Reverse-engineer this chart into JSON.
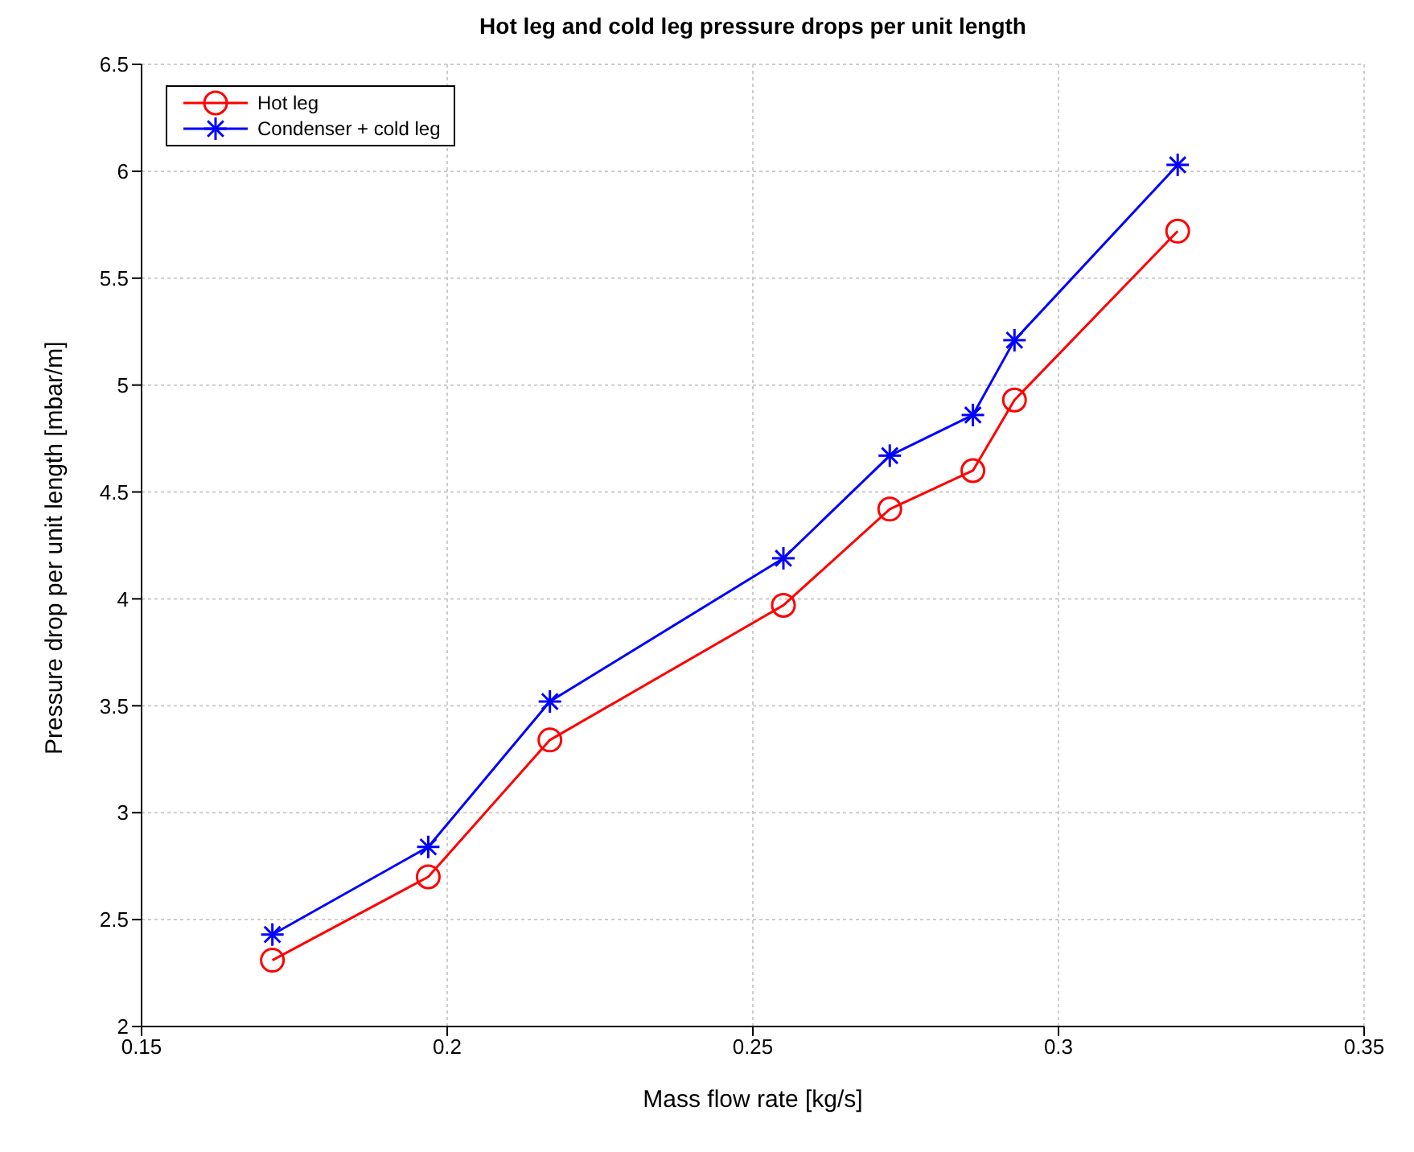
{
  "chart_data": {
    "type": "line",
    "title": "Hot leg and cold leg pressure drops per unit length",
    "xlabel": "Mass flow rate [kg/s]",
    "ylabel": "Pressure drop per unit length [mbar/m]",
    "x": [
      0.1714,
      0.1969,
      0.2168,
      0.255,
      0.2724,
      0.286,
      0.2928,
      0.3195
    ],
    "series": [
      {
        "name": "Hot leg",
        "color": "#ff0000",
        "marker": "circle",
        "values": [
          2.31,
          2.7,
          3.34,
          3.97,
          4.42,
          4.6,
          4.93,
          5.72
        ]
      },
      {
        "name": "Condenser + cold leg",
        "color": "#0000ff",
        "marker": "cross",
        "values": [
          2.43,
          2.84,
          3.52,
          4.19,
          4.67,
          4.86,
          5.21,
          6.03
        ]
      }
    ],
    "xlim": [
      0.15,
      0.35
    ],
    "xticks": [
      0.15,
      0.2,
      0.25,
      0.3,
      0.35
    ],
    "ylim": [
      2,
      6.5
    ],
    "yticks": [
      2,
      2.5,
      3,
      3.5,
      4,
      4.5,
      5,
      5.5,
      6,
      6.5
    ],
    "grid": true,
    "legend": "top left",
    "line_style": "solid"
  }
}
